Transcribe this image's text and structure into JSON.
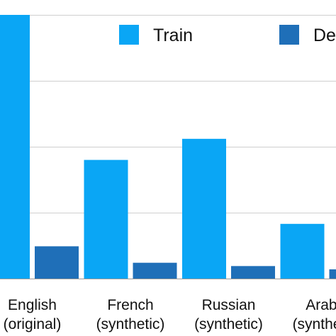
{
  "chart_data": {
    "type": "bar",
    "categories": [
      [
        "English",
        "(original)"
      ],
      [
        "French",
        "(synthetic)"
      ],
      [
        "Russian",
        "(synthetic)"
      ],
      [
        "Arabic",
        "(synthetic)"
      ]
    ],
    "series": [
      {
        "name": "Train",
        "color": "#0aa6f5",
        "values": [
          400,
          180,
          212,
          83
        ]
      },
      {
        "name": "Dev",
        "color": "#1f6fb8",
        "values": [
          49,
          24,
          19,
          14
        ]
      }
    ],
    "ylim": [
      0,
      400
    ],
    "grid": true,
    "gridlines": [
      100,
      200,
      300,
      400
    ],
    "legend_position": "top-right"
  }
}
